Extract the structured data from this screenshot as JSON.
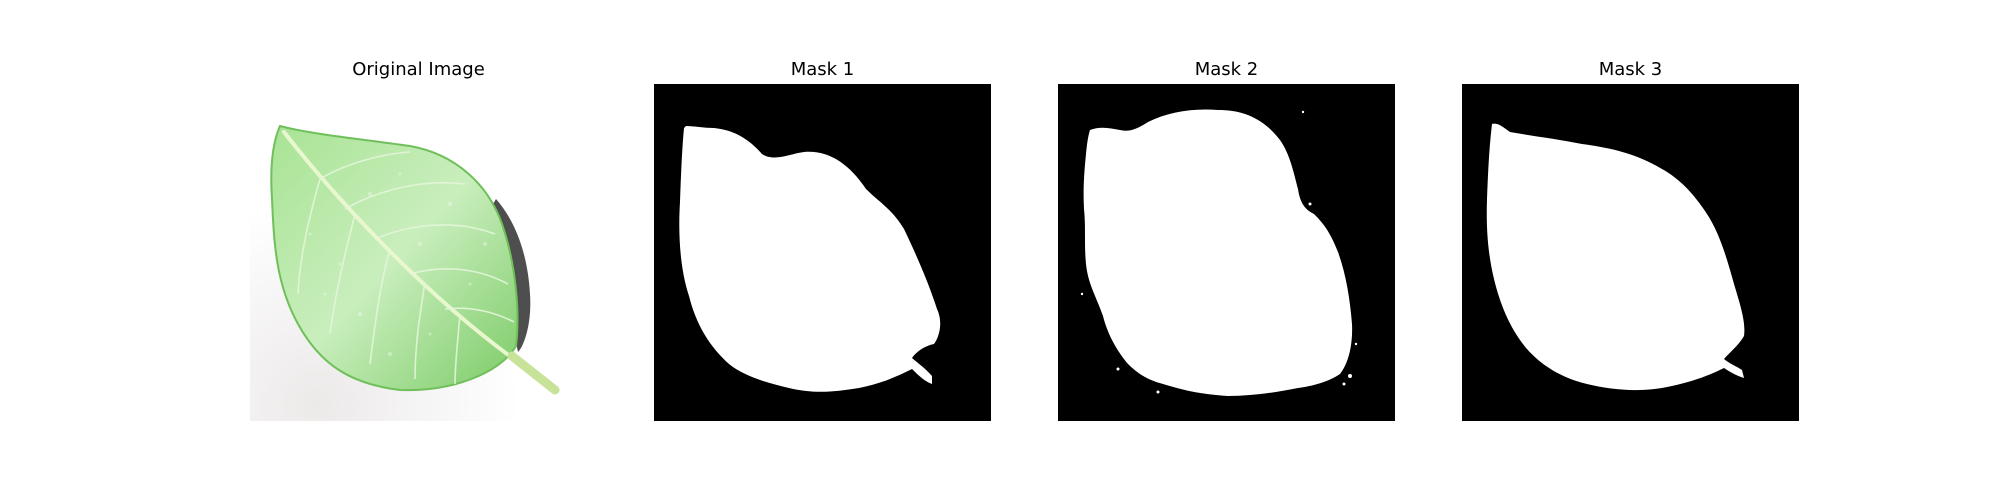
{
  "panels": [
    {
      "title": "Original Image"
    },
    {
      "title": "Mask 1"
    },
    {
      "title": "Mask 2"
    },
    {
      "title": "Mask 3"
    }
  ],
  "colors": {
    "background": "#ffffff",
    "mask_background": "#000000",
    "mask_foreground": "#ffffff",
    "leaf_green": "#8fd67a",
    "leaf_light": "#d8f2cf",
    "leaf_dark": "#5fb84f",
    "stem": "#c9e6a0"
  }
}
